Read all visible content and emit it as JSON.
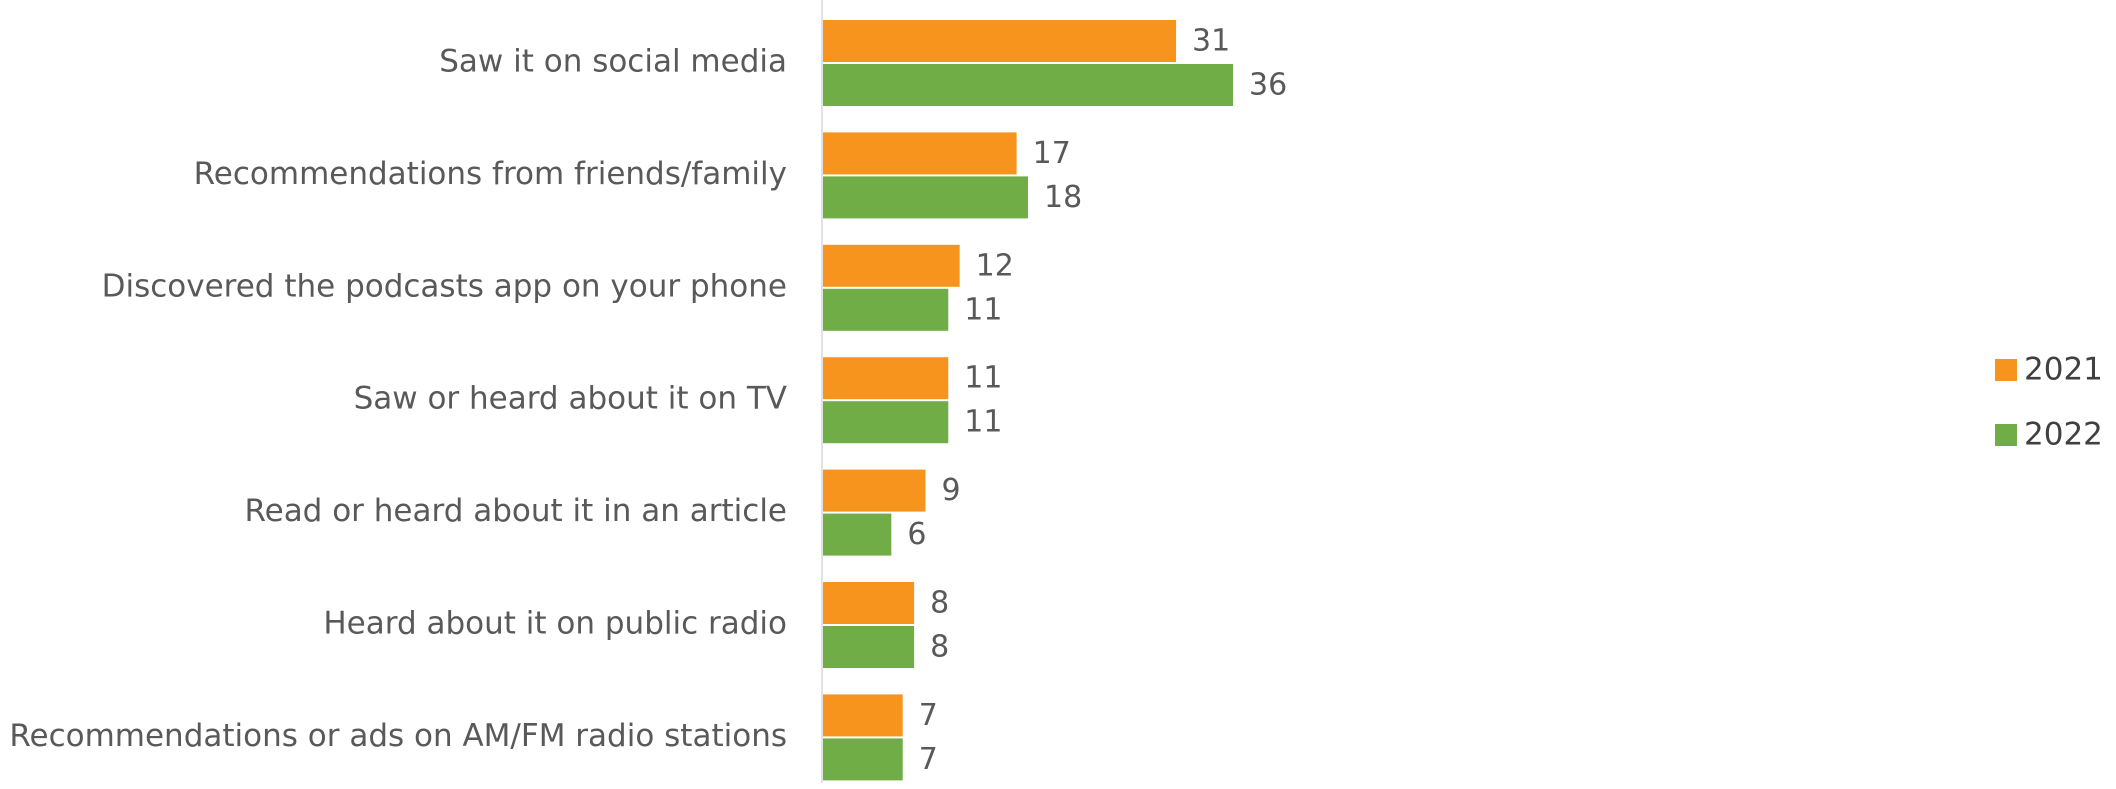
{
  "chart_data": {
    "type": "bar",
    "orientation": "horizontal",
    "categories": [
      "Saw it on social media",
      "Recommendations from friends/family",
      "Discovered the podcasts app on your phone",
      "Saw or heard about it on TV",
      "Read or heard about it in an article",
      "Heard about it on public radio",
      "Recommendations or ads on AM/FM radio stations"
    ],
    "series": [
      {
        "name": "2021",
        "color": "#F7941D",
        "values": [
          31,
          17,
          12,
          11,
          9,
          8,
          7
        ]
      },
      {
        "name": "2022",
        "color": "#70AD47",
        "values": [
          36,
          18,
          11,
          11,
          6,
          8,
          7
        ]
      }
    ],
    "legend": "right"
  }
}
